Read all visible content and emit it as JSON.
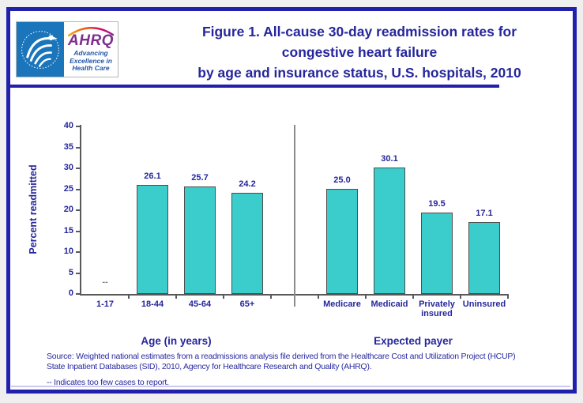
{
  "window": {
    "background": "#efefef"
  },
  "frame": {
    "border_color": "#2020AC",
    "background": "#ffffff"
  },
  "logo": {
    "wordmark": "AHRQ",
    "tagline_lines": [
      "Advancing",
      "Excellence in",
      "Health Care"
    ],
    "hhs_blue": "#1B75BB",
    "wordmark_color": "#7D2F8D",
    "tagline_color": "#2456A8"
  },
  "title": {
    "lines": [
      "Figure 1. All-cause 30-day readmission rates for",
      "congestive heart failure",
      "by age and insurance status, U.S. hospitals, 2010"
    ],
    "color": "#26269C"
  },
  "chart_data": {
    "type": "bar",
    "title": "Figure 1. All-cause 30-day readmission rates for congestive heart failure by age and insurance status, U.S. hospitals, 2010",
    "ylabel": "Percent readmitted",
    "ylim": [
      0,
      40
    ],
    "ytick_step": 5,
    "yticks": [
      0,
      5,
      10,
      15,
      20,
      25,
      30,
      35,
      40
    ],
    "grid": false,
    "legend": "none",
    "bar_color": "#3BCCCC",
    "bar_border_color": "#4D4D4D",
    "axis_color": "#595959",
    "value_label_color": "#26269C",
    "no_data_marker": "--",
    "groups": [
      {
        "label": "Age (in years)",
        "items": [
          {
            "category": "1-17",
            "value": null,
            "display": "--"
          },
          {
            "category": "18-44",
            "value": 26.1,
            "display": "26.1"
          },
          {
            "category": "45-64",
            "value": 25.7,
            "display": "25.7"
          },
          {
            "category": "65+",
            "value": 24.2,
            "display": "24.2"
          }
        ]
      },
      {
        "label": "Expected payer",
        "items": [
          {
            "category": "Medicare",
            "value": 25.0,
            "display": "25.0"
          },
          {
            "category": "Medicaid",
            "value": 30.1,
            "display": "30.1"
          },
          {
            "category": "Privately insured",
            "value": 19.5,
            "display": "19.5"
          },
          {
            "category": "Uninsured",
            "value": 17.1,
            "display": "17.1"
          }
        ]
      }
    ]
  },
  "footer": {
    "source_lines": [
      "Source: Weighted national estimates from a readmissions analysis file derived from the Healthcare Cost and Utilization Project (HCUP)",
      "State Inpatient Databases (SID), 2010, Agency for Healthcare Research and Quality (AHRQ)."
    ],
    "footnote": "-- Indicates too few cases to report."
  }
}
